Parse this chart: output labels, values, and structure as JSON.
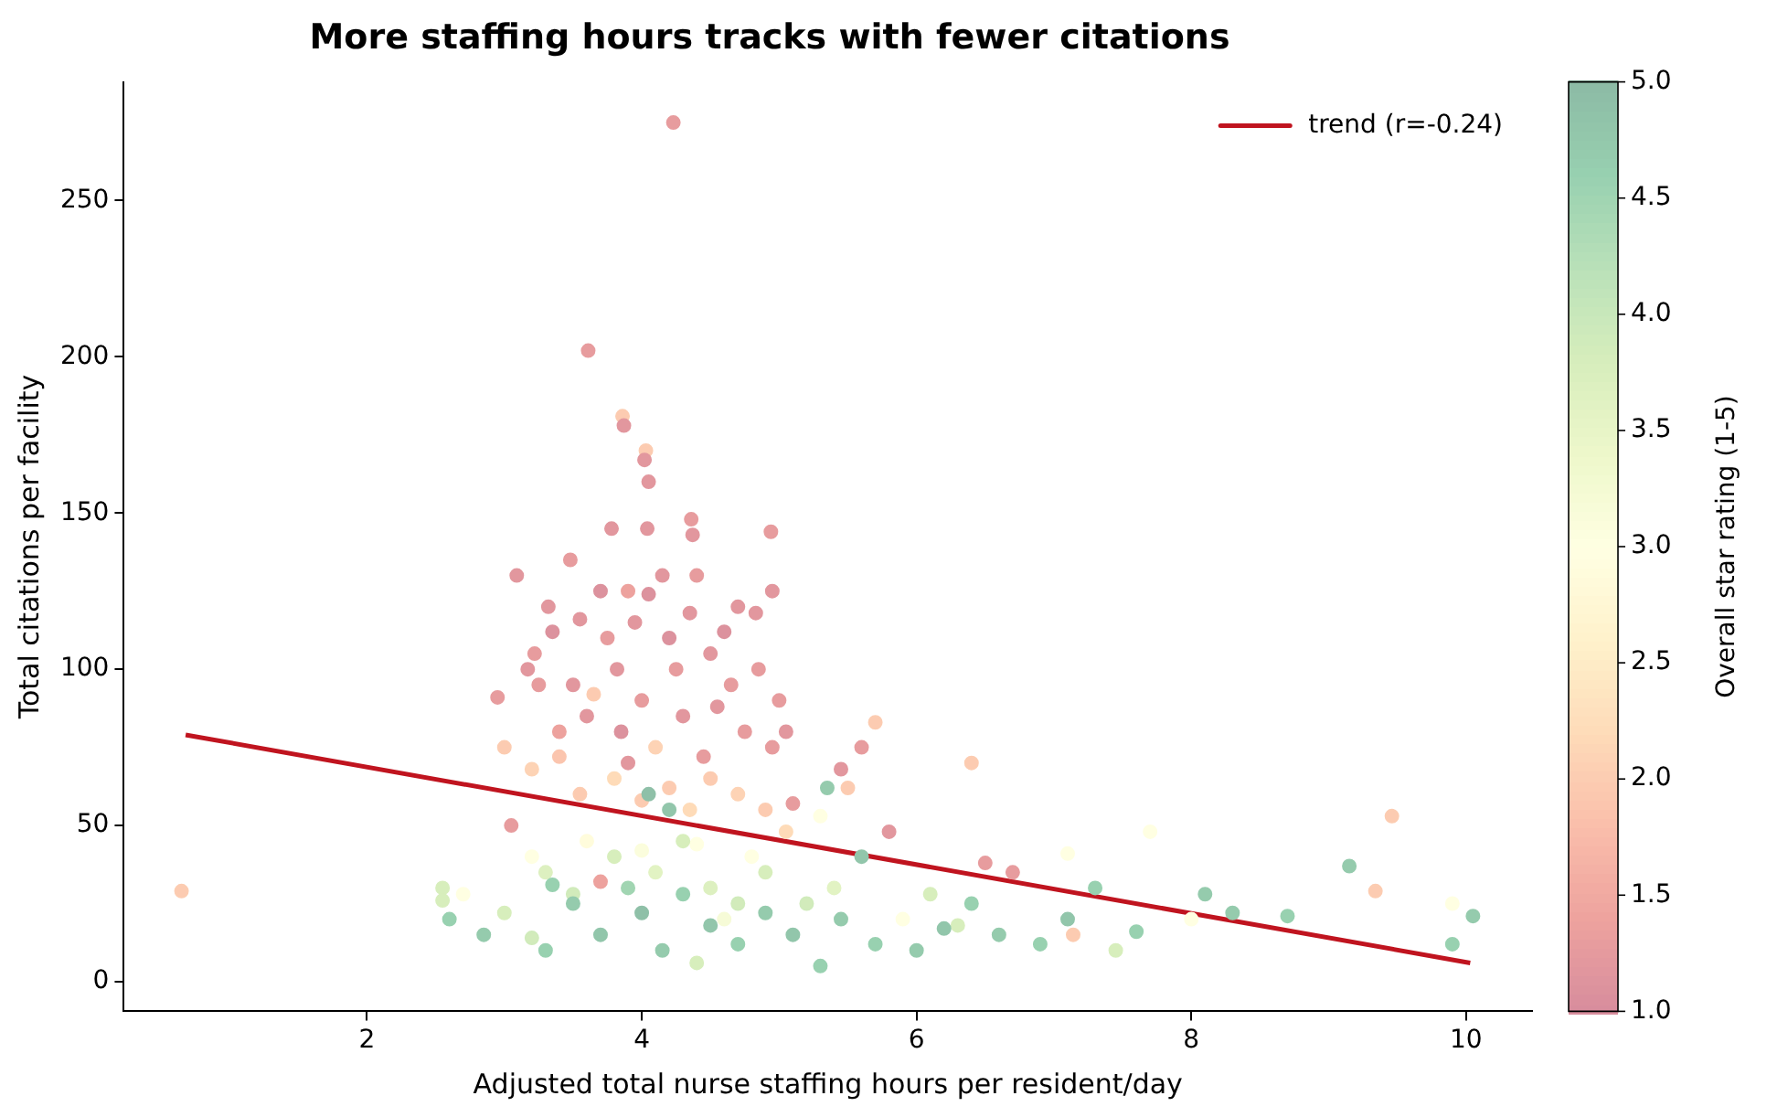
{
  "chart_data": {
    "type": "scatter",
    "title": "More staffing hours tracks with fewer citations",
    "xlabel": "Adjusted total nurse staffing hours per resident/day",
    "ylabel": "Total citations per facility",
    "clabel": "Overall star rating (1-5)",
    "xlim": [
      0.23,
      10.48
    ],
    "xticks": [
      2,
      4,
      6,
      8,
      10
    ],
    "ylim": [
      -9.5,
      288
    ],
    "yticks": [
      0,
      50,
      100,
      150,
      200,
      250
    ],
    "clim": [
      1,
      5
    ],
    "cticks": [
      {
        "value": 1,
        "label": "1.0"
      },
      {
        "value": 1.5,
        "label": "1.5"
      },
      {
        "value": 2,
        "label": "2.0"
      },
      {
        "value": 2.5,
        "label": "2.5"
      },
      {
        "value": 3,
        "label": "3.0"
      },
      {
        "value": 3.5,
        "label": "3.5"
      },
      {
        "value": 4,
        "label": "4.0"
      },
      {
        "value": 4.5,
        "label": "4.5"
      },
      {
        "value": 5,
        "label": "5.0"
      }
    ],
    "grid": false,
    "legend": "top right",
    "series": [
      {
        "marker": "circle",
        "colors": [
          "#e79c9e",
          "#e79c9e",
          "#fccbb1",
          "#fccbb1",
          "#e2979e",
          "#fccbb1",
          "#e2979e",
          "#e2979e",
          "#e2979e",
          "#e2979e",
          "#e79c9e",
          "#e2979e",
          "#e79c9e",
          "#e2979e",
          "#e79c9e",
          "#e2979e",
          "#e79c9e",
          "#e2979e",
          "#e79c9e",
          "#dc929e",
          "#e2979e",
          "#dc929e",
          "#e79c9e",
          "#e2979e",
          "#eda29e",
          "#e2979e",
          "#dc929e",
          "#e2979e",
          "#dc929e",
          "#e79c9e",
          "#e2979e",
          "#e79c9e",
          "#e2979e",
          "#dc929e",
          "#e79c9e",
          "#e2979e",
          "#e2979e",
          "#e79c9e",
          "#e2979e",
          "#e79c9e",
          "#e2979e",
          "#e79c9e",
          "#e2979e",
          "#eda29e",
          "#e79c9e",
          "#e2979e",
          "#dc929e",
          "#e2979e",
          "#e79c9e",
          "#e2979e",
          "#e79c9e",
          "#e79c9e",
          "#e2979e",
          "#e79c9e",
          "#e79c9e",
          "#e2979e",
          "#e2979e",
          "#eda29e",
          "#e79c9e",
          "#e79c9e",
          "#e79c9e",
          "#fccbb1",
          "#fdd3b5",
          "#fbc5ae",
          "#fccbb1",
          "#fccbb1",
          "#fedbb8",
          "#fccbb1",
          "#fdd3b5",
          "#fccbb1",
          "#fedbb8",
          "#fccbb1",
          "#fdd3b5",
          "#fccbb1",
          "#fedbb8",
          "#fccbb1",
          "#fccbb1",
          "#fccbb1",
          "#fccbb1",
          "#fccbb1",
          "#fccbb1",
          "#ffffe2",
          "#ffffe2",
          "#fffcdc",
          "#fbfddd",
          "#ffffe2",
          "#ffffe2",
          "#ffffe2",
          "#ffffe2",
          "#ffffe2",
          "#ffffe2",
          "#ffffe2",
          "#ffffe2",
          "#f6fbd7",
          "#d7eebc",
          "#d7eebc",
          "#d7eebc",
          "#ddf0c0",
          "#d2ebbb",
          "#d7eebc",
          "#e2f3c3",
          "#d7eebc",
          "#ddf0c0",
          "#d2ebbb",
          "#d7eebc",
          "#d2ebbb",
          "#e2f3c3",
          "#d7eebc",
          "#d7eebc",
          "#d7eebc",
          "#d7eebc",
          "#d2ebbb",
          "#98d1b0",
          "#95cbad",
          "#98d1b0",
          "#95cbad",
          "#92c6ab",
          "#a1d5b2",
          "#8fc0a8",
          "#95cbad",
          "#98d1b0",
          "#92c6ab",
          "#98d1b0",
          "#95cbad",
          "#92c6ab",
          "#98d1b0",
          "#95cbad",
          "#92c6ab",
          "#95cbad",
          "#98d1b0",
          "#95cbad",
          "#92c6ab",
          "#98d1b0",
          "#95cbad",
          "#98d1b0",
          "#92c6ab",
          "#98d1b0",
          "#98d1b0",
          "#95cbad",
          "#95cbad",
          "#98d1b0",
          "#95cbad",
          "#98d1b0",
          "#95cbad",
          "#98d1b0",
          "#92c6ab",
          "#8fc0a8"
        ],
        "x": [
          4.23,
          3.61,
          0.65,
          3.86,
          3.87,
          4.03,
          4.02,
          4.05,
          3.78,
          4.04,
          4.36,
          4.37,
          4.94,
          3.09,
          3.48,
          3.32,
          3.22,
          3.17,
          2.95,
          3.35,
          3.55,
          3.7,
          3.75,
          3.82,
          3.9,
          3.95,
          4.05,
          4.15,
          4.2,
          4.25,
          4.35,
          4.4,
          4.5,
          4.6,
          4.65,
          4.7,
          4.83,
          4.85,
          4.95,
          5.0,
          4.55,
          4.0,
          3.6,
          3.4,
          3.25,
          3.5,
          3.85,
          4.3,
          4.75,
          5.05,
          4.95,
          3.05,
          3.9,
          4.45,
          5.6,
          5.8,
          5.45,
          3.7,
          6.5,
          6.7,
          5.1,
          3.0,
          3.2,
          3.4,
          3.55,
          3.65,
          3.8,
          4.0,
          4.1,
          4.2,
          4.35,
          4.5,
          4.7,
          4.9,
          5.05,
          5.5,
          5.7,
          6.4,
          9.46,
          9.34,
          7.14,
          2.7,
          3.2,
          3.6,
          4.0,
          4.4,
          4.8,
          5.3,
          7.1,
          7.7,
          8.0,
          9.9,
          5.9,
          4.6,
          2.55,
          2.55,
          3.0,
          3.3,
          3.5,
          3.8,
          4.1,
          4.3,
          4.5,
          4.7,
          4.9,
          5.2,
          5.4,
          6.1,
          6.3,
          7.45,
          4.4,
          3.2,
          2.6,
          2.85,
          3.3,
          3.5,
          3.7,
          3.9,
          4.0,
          4.15,
          4.3,
          4.5,
          4.7,
          4.9,
          5.1,
          5.3,
          5.45,
          5.6,
          5.35,
          5.7,
          6.0,
          6.2,
          6.4,
          6.6,
          6.9,
          7.1,
          7.3,
          7.6,
          8.1,
          8.3,
          8.7,
          9.15,
          9.9,
          10.05,
          3.35,
          4.2,
          4.05
        ],
        "values": [
          275,
          202,
          29,
          181,
          178,
          170,
          167,
          160,
          145,
          145,
          148,
          143,
          144,
          130,
          135,
          120,
          105,
          100,
          91,
          112,
          116,
          125,
          110,
          100,
          125,
          115,
          124,
          130,
          110,
          100,
          118,
          130,
          105,
          112,
          95,
          120,
          118,
          100,
          125,
          90,
          88,
          90,
          85,
          80,
          95,
          95,
          80,
          85,
          80,
          80,
          75,
          50,
          70,
          72,
          75,
          48,
          68,
          32,
          38,
          35,
          57,
          75,
          68,
          72,
          60,
          92,
          65,
          58,
          75,
          62,
          55,
          65,
          60,
          55,
          48,
          62,
          83,
          70,
          53,
          29,
          15,
          28,
          40,
          45,
          42,
          44,
          40,
          53,
          41,
          48,
          20,
          25,
          20,
          20,
          30,
          26,
          22,
          35,
          28,
          40,
          35,
          45,
          30,
          25,
          35,
          25,
          30,
          28,
          18,
          10,
          6,
          14,
          20,
          15,
          10,
          25,
          15,
          30,
          22,
          10,
          28,
          18,
          12,
          22,
          15,
          5,
          20,
          40,
          62,
          12,
          10,
          17,
          25,
          15,
          12,
          20,
          30,
          16,
          28,
          22,
          21,
          37,
          12,
          21,
          31,
          55,
          60
        ],
        "cvalues": [
          1.3,
          1.3,
          2.0,
          2.0,
          1.2,
          2.0,
          1.2,
          1.2,
          1.2,
          1.2,
          1.3,
          1.2,
          1.3,
          1.2,
          1.3,
          1.2,
          1.3,
          1.2,
          1.3,
          1.1,
          1.2,
          1.1,
          1.3,
          1.2,
          1.4,
          1.2,
          1.1,
          1.2,
          1.1,
          1.3,
          1.2,
          1.3,
          1.2,
          1.1,
          1.3,
          1.2,
          1.2,
          1.3,
          1.2,
          1.3,
          1.2,
          1.3,
          1.2,
          1.4,
          1.3,
          1.2,
          1.1,
          1.2,
          1.3,
          1.2,
          1.3,
          1.3,
          1.2,
          1.3,
          1.3,
          1.2,
          1.2,
          1.4,
          1.3,
          1.3,
          1.3,
          2.0,
          2.1,
          1.9,
          2.0,
          2.0,
          2.2,
          2.0,
          2.1,
          2.0,
          2.2,
          2.0,
          2.1,
          2.0,
          2.2,
          2.0,
          2.0,
          2.0,
          2.0,
          2.0,
          2.0,
          3.0,
          3.0,
          2.9,
          3.1,
          3.0,
          3.0,
          3.0,
          3.0,
          3.0,
          3.0,
          3.0,
          3.0,
          3.2,
          3.8,
          3.8,
          3.8,
          3.7,
          3.9,
          3.8,
          3.6,
          3.8,
          3.7,
          3.9,
          3.8,
          3.9,
          3.6,
          3.8,
          3.8,
          3.8,
          3.8,
          3.9,
          4.6,
          4.7,
          4.6,
          4.7,
          4.8,
          4.5,
          4.9,
          4.7,
          4.6,
          4.8,
          4.6,
          4.7,
          4.8,
          4.6,
          4.7,
          4.8,
          4.7,
          4.6,
          4.7,
          4.8,
          4.6,
          4.7,
          4.6,
          4.8,
          4.6,
          4.6,
          4.7,
          4.7,
          4.6,
          4.7,
          4.6,
          4.7,
          4.6,
          4.8,
          4.9
        ]
      },
      {
        "type": "line",
        "name": "trend (r=-0.24)",
        "color": "#c0141f",
        "x": [
          0.68,
          10.03
        ],
        "values": [
          79,
          6
        ]
      }
    ]
  }
}
